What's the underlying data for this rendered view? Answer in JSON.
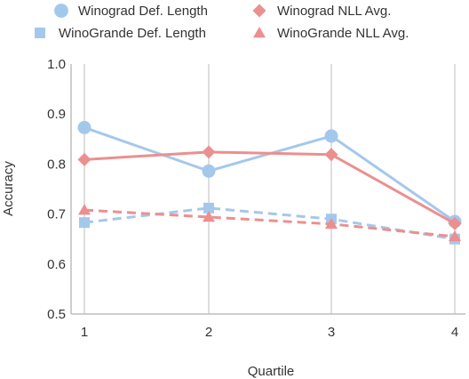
{
  "chart_data": {
    "type": "line",
    "xlabel": "Quartile",
    "ylabel": "Accuracy",
    "x": [
      1,
      2,
      3,
      4
    ],
    "xticks": [
      "1",
      "2",
      "3",
      "4"
    ],
    "ylim": [
      0.5,
      1.0
    ],
    "yticks": [
      "0.5",
      "0.6",
      "0.7",
      "0.8",
      "0.9",
      "1.0"
    ],
    "ytick_values": [
      0.5,
      0.6,
      0.7,
      0.8,
      0.9,
      1.0
    ],
    "grid": "vertical",
    "legend_position": "top",
    "series": [
      {
        "name": "Winograd Def. Length",
        "values": [
          0.873,
          0.786,
          0.856,
          0.685
        ],
        "color": "#a4c8ec",
        "marker": "circle",
        "linestyle": "solid"
      },
      {
        "name": "Winograd NLL Avg.",
        "values": [
          0.809,
          0.824,
          0.819,
          0.681
        ],
        "color": "#ec8f8f",
        "marker": "diamond",
        "linestyle": "solid"
      },
      {
        "name": "WinoGrande Def. Length",
        "values": [
          0.683,
          0.712,
          0.69,
          0.65
        ],
        "color": "#a4c8ec",
        "marker": "square",
        "linestyle": "dashed"
      },
      {
        "name": "WinoGrande NLL Avg.",
        "values": [
          0.708,
          0.694,
          0.68,
          0.655
        ],
        "color": "#ec8f8f",
        "marker": "triangle",
        "linestyle": "dashed"
      }
    ]
  }
}
